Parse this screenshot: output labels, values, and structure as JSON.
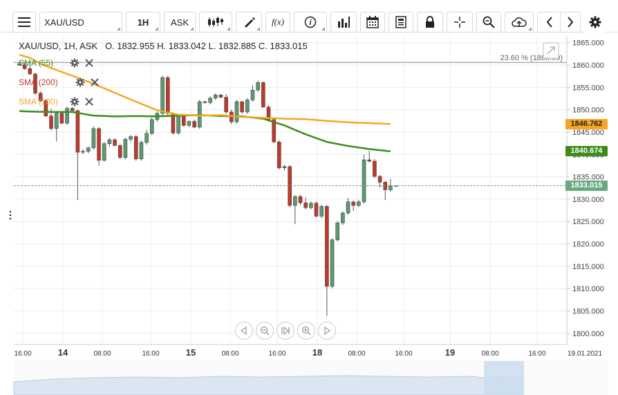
{
  "toolbar": {
    "symbol": "XAU/USD",
    "interval": "1H",
    "price_side": "ASK",
    "buttons": [
      "menu-icon",
      "candles-icon",
      "draw-icon",
      "function-icon",
      "info-icon",
      "indicators-icon",
      "calendar-icon",
      "news-icon",
      "lock-icon",
      "crosshair-icon",
      "zoom-icon",
      "cloud-upload-icon",
      "prev-icon",
      "next-icon",
      "settings-icon"
    ],
    "function_label": "f(x)"
  },
  "ohlc_line": "XAU/USD, 1H, ASK   O. 1832.955 H. 1833.042 L. 1832.885 C. 1833.015",
  "indicators": [
    {
      "label": "SMA (55)",
      "color": "#3d8c1a"
    },
    {
      "label": "SMA (200)",
      "color": "#c0392b"
    },
    {
      "label": "SMA (100)",
      "color": "#f5a623"
    }
  ],
  "fib_label": "23.60 % (1860.59)",
  "price_tags": [
    {
      "value": "1846.762",
      "bg": "#f5a623",
      "fg": "#222"
    },
    {
      "value": "1840.674",
      "bg": "#3d8c1a",
      "fg": "#fff"
    },
    {
      "value": "1833.015",
      "bg": "#6aa882",
      "fg": "#fff"
    }
  ],
  "colors": {
    "bull": "#5a9b72",
    "bear": "#c0392b",
    "grid": "#ececec",
    "fib": "#888888"
  },
  "chart_data": {
    "type": "candlestick",
    "title": "XAU/USD, 1H, ASK",
    "ylim": [
      1797.5,
      1866.5
    ],
    "y_ticks": [
      1800,
      1805,
      1810,
      1815,
      1820,
      1825,
      1830,
      1835,
      1840,
      1845,
      1850,
      1855,
      1860,
      1865
    ],
    "x_ticks": [
      "16:00",
      "14",
      "08:00",
      "16:00",
      "15",
      "08:00",
      "16:00",
      "18",
      "08:00",
      "16:00",
      "19",
      "08:00",
      "16:00",
      "19.01.2021"
    ],
    "bold_x_ticks": [
      "14",
      "15",
      "18",
      "19"
    ],
    "candles": [
      [
        1860.3,
        1860.7,
        1859.8,
        1860.0
      ],
      [
        1860.0,
        1860.5,
        1858.9,
        1859.2
      ],
      [
        1859.2,
        1860.8,
        1857.8,
        1858.0
      ],
      [
        1858.0,
        1858.3,
        1853.3,
        1853.7
      ],
      [
        1853.7,
        1854.1,
        1851.7,
        1852.0
      ],
      [
        1852.0,
        1852.4,
        1848.4,
        1848.6
      ],
      [
        1848.6,
        1850.3,
        1845.4,
        1845.8
      ],
      [
        1845.8,
        1849.7,
        1842.9,
        1849.2
      ],
      [
        1849.2,
        1849.6,
        1846.8,
        1847.0
      ],
      [
        1847.0,
        1850.7,
        1846.6,
        1850.3
      ],
      [
        1850.3,
        1850.6,
        1849.6,
        1849.8
      ],
      [
        1849.8,
        1850.0,
        1829.8,
        1840.5
      ],
      [
        1840.5,
        1841.2,
        1840.1,
        1840.7
      ],
      [
        1840.7,
        1841.7,
        1840.3,
        1841.5
      ],
      [
        1841.5,
        1846.3,
        1841.1,
        1845.8
      ],
      [
        1845.8,
        1846.1,
        1837.5,
        1838.7
      ],
      [
        1838.7,
        1842.8,
        1838.4,
        1842.4
      ],
      [
        1842.4,
        1843.7,
        1841.8,
        1843.3
      ],
      [
        1843.3,
        1843.6,
        1841.8,
        1842.0
      ],
      [
        1842.0,
        1842.4,
        1839.0,
        1839.3
      ],
      [
        1839.3,
        1843.8,
        1838.9,
        1843.4
      ],
      [
        1843.4,
        1844.4,
        1842.8,
        1844.0
      ],
      [
        1844.0,
        1844.3,
        1838.6,
        1839.0
      ],
      [
        1839.0,
        1843.1,
        1838.6,
        1842.7
      ],
      [
        1842.7,
        1845.5,
        1842.2,
        1844.7
      ],
      [
        1844.7,
        1848.2,
        1844.3,
        1847.8
      ],
      [
        1847.8,
        1849.6,
        1847.3,
        1849.2
      ],
      [
        1849.2,
        1857.6,
        1848.7,
        1857.2
      ],
      [
        1857.2,
        1857.6,
        1848.7,
        1849.2
      ],
      [
        1849.2,
        1849.4,
        1844.4,
        1844.8
      ],
      [
        1844.8,
        1848.9,
        1844.4,
        1848.5
      ],
      [
        1848.5,
        1848.8,
        1846.2,
        1846.5
      ],
      [
        1846.5,
        1847.6,
        1846.1,
        1847.4
      ],
      [
        1847.4,
        1847.8,
        1845.9,
        1846.1
      ],
      [
        1846.1,
        1852.2,
        1845.7,
        1851.8
      ],
      [
        1851.8,
        1852.0,
        1851.4,
        1851.6
      ],
      [
        1851.6,
        1853.0,
        1851.2,
        1852.6
      ],
      [
        1852.6,
        1853.7,
        1852.2,
        1853.3
      ],
      [
        1853.3,
        1853.5,
        1852.6,
        1852.8
      ],
      [
        1852.8,
        1853.5,
        1849.1,
        1849.5
      ],
      [
        1849.5,
        1850.0,
        1846.8,
        1847.3
      ],
      [
        1847.3,
        1852.2,
        1846.9,
        1851.8
      ],
      [
        1851.8,
        1852.0,
        1849.1,
        1849.5
      ],
      [
        1849.5,
        1852.6,
        1849.1,
        1852.2
      ],
      [
        1852.2,
        1855.5,
        1851.8,
        1854.4
      ],
      [
        1854.4,
        1856.5,
        1854.0,
        1856.1
      ],
      [
        1856.1,
        1856.3,
        1850.4,
        1850.6
      ],
      [
        1850.6,
        1851.0,
        1847.4,
        1847.8
      ],
      [
        1847.8,
        1848.2,
        1842.5,
        1842.8
      ],
      [
        1842.8,
        1843.2,
        1836.6,
        1837.0
      ],
      [
        1837.0,
        1837.7,
        1836.4,
        1837.3
      ],
      [
        1837.3,
        1837.6,
        1828.2,
        1828.6
      ],
      [
        1828.6,
        1830.9,
        1824.4,
        1830.6
      ],
      [
        1830.6,
        1831.0,
        1828.7,
        1829.2
      ],
      [
        1829.2,
        1830.4,
        1827.7,
        1828.1
      ],
      [
        1828.1,
        1829.5,
        1827.7,
        1829.1
      ],
      [
        1829.1,
        1829.5,
        1825.9,
        1826.2
      ],
      [
        1826.2,
        1828.8,
        1825.7,
        1828.4
      ],
      [
        1828.4,
        1828.7,
        1803.9,
        1810.5
      ],
      [
        1810.5,
        1821.3,
        1810.1,
        1820.9
      ],
      [
        1820.9,
        1825.1,
        1820.5,
        1824.7
      ],
      [
        1824.7,
        1827.3,
        1824.2,
        1826.9
      ],
      [
        1826.9,
        1830.3,
        1826.5,
        1829.4
      ],
      [
        1829.4,
        1829.7,
        1827.4,
        1828.6
      ],
      [
        1828.6,
        1829.8,
        1828.2,
        1829.4
      ],
      [
        1829.4,
        1840.0,
        1829.0,
        1838.8
      ],
      [
        1838.8,
        1840.8,
        1838.2,
        1838.5
      ],
      [
        1838.5,
        1839.0,
        1834.7,
        1835.1
      ],
      [
        1835.1,
        1835.4,
        1832.6,
        1833.8
      ],
      [
        1833.8,
        1834.1,
        1829.8,
        1832.1
      ],
      [
        1832.1,
        1834.5,
        1831.7,
        1833.0
      ],
      [
        1832.955,
        1833.042,
        1832.885,
        1833.015
      ]
    ],
    "series": [
      {
        "name": "SMA (55)",
        "values": [
          [
            0,
            1849.7
          ],
          [
            2,
            1849.6
          ],
          [
            6,
            1849.5
          ],
          [
            10,
            1849.5
          ],
          [
            14,
            1848.7
          ],
          [
            18,
            1848.5
          ],
          [
            22,
            1848.6
          ],
          [
            26,
            1848.5
          ],
          [
            30,
            1848.7
          ],
          [
            34,
            1848.8
          ],
          [
            38,
            1848.6
          ],
          [
            42,
            1848.5
          ],
          [
            46,
            1848.0
          ],
          [
            50,
            1846.5
          ],
          [
            54,
            1844.5
          ],
          [
            58,
            1842.8
          ],
          [
            62,
            1841.9
          ],
          [
            66,
            1841.2
          ],
          [
            70,
            1840.7
          ]
        ]
      },
      {
        "name": "SMA (100)",
        "values": [
          [
            0,
            1862.3
          ],
          [
            2,
            1861.6
          ],
          [
            4,
            1860.3
          ],
          [
            6,
            1859.3
          ],
          [
            10,
            1857.6
          ],
          [
            14,
            1855.8
          ],
          [
            18,
            1853.8
          ],
          [
            22,
            1851.8
          ],
          [
            26,
            1849.9
          ],
          [
            30,
            1848.9
          ],
          [
            34,
            1848.7
          ],
          [
            38,
            1848.8
          ],
          [
            42,
            1848.4
          ],
          [
            46,
            1848.2
          ],
          [
            50,
            1848.0
          ],
          [
            54,
            1847.9
          ],
          [
            58,
            1847.5
          ],
          [
            62,
            1847.2
          ],
          [
            66,
            1847.0
          ],
          [
            70,
            1846.8
          ]
        ]
      }
    ],
    "fib_level": 1860.59,
    "last_price": 1833.015
  }
}
